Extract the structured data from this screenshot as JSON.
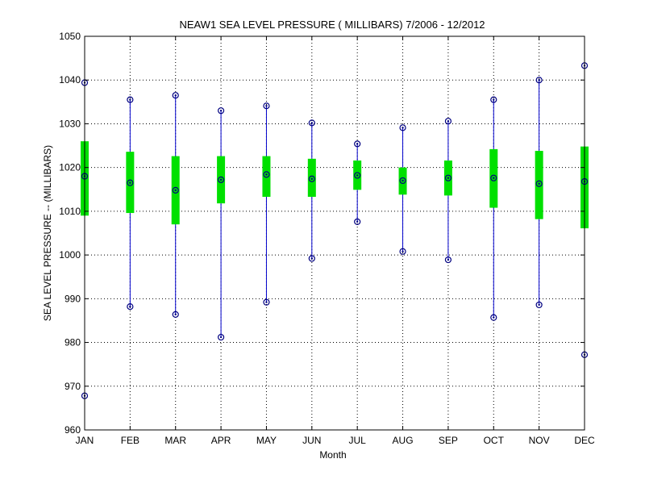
{
  "chart_data": {
    "type": "box",
    "title": "NEAW1  SEA LEVEL PRESSURE ( MILLIBARS) 7/2006 - 12/2012",
    "xlabel": "Month",
    "ylabel": "SEA LEVEL PRESSURE -- (MILLIBARS)",
    "ylim": [
      960,
      1050
    ],
    "yticks": [
      960,
      970,
      980,
      990,
      1000,
      1010,
      1020,
      1030,
      1040,
      1050
    ],
    "grid": true,
    "categories": [
      "JAN",
      "FEB",
      "MAR",
      "APR",
      "MAY",
      "JUN",
      "JUL",
      "AUG",
      "SEP",
      "OCT",
      "NOV",
      "DEC"
    ],
    "min": [
      967.8,
      988.2,
      986.4,
      981.2,
      989.2,
      999.2,
      1007.6,
      1000.8,
      998.9,
      985.7,
      988.6,
      977.2
    ],
    "max": [
      1039.4,
      1035.5,
      1036.5,
      1033.0,
      1034.1,
      1030.2,
      1025.4,
      1029.1,
      1030.6,
      1035.5,
      1040.0,
      1043.3
    ],
    "mean": [
      1018.0,
      1016.5,
      1014.8,
      1017.2,
      1018.4,
      1017.4,
      1018.2,
      1017.0,
      1017.6,
      1017.6,
      1016.3,
      1016.8
    ],
    "q_low": [
      1009.0,
      1009.6,
      1007.0,
      1011.8,
      1013.3,
      1013.3,
      1014.9,
      1013.8,
      1013.6,
      1010.8,
      1008.2,
      1006.1
    ],
    "q_high": [
      1026.0,
      1023.6,
      1022.6,
      1022.6,
      1022.6,
      1022.0,
      1021.6,
      1020.0,
      1021.6,
      1024.2,
      1023.8,
      1024.8
    ],
    "colors": {
      "range_line": "#0000cc",
      "box": "#00e000",
      "marker": "#000080",
      "grid": "#000000"
    }
  }
}
